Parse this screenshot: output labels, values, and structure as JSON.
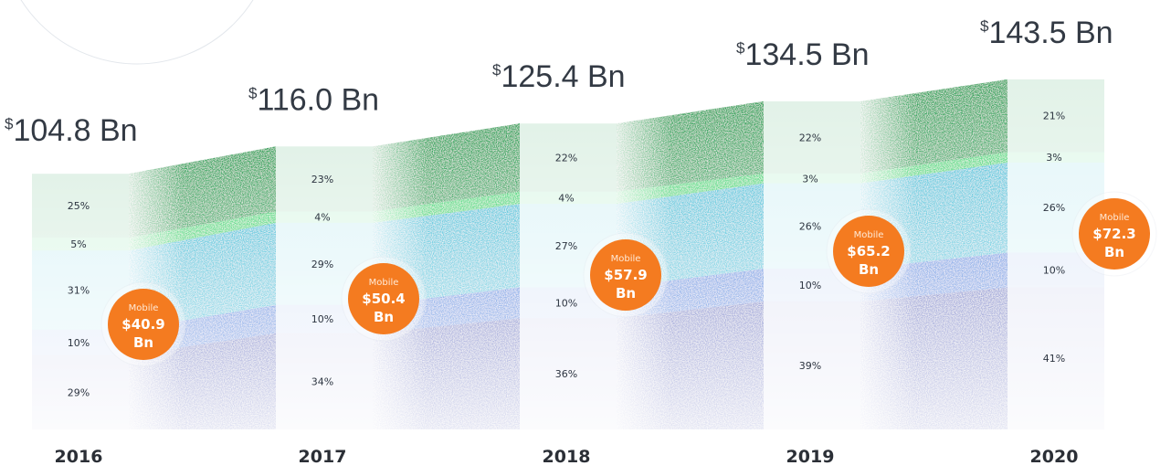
{
  "chart_data": {
    "type": "area",
    "title": "",
    "categories": [
      "2016",
      "2017",
      "2018",
      "2019",
      "2020"
    ],
    "totals_prefix": "$",
    "totals": [
      "104.8 Bn",
      "116.0 Bn",
      "125.4 Bn",
      "134.5 Bn",
      "143.5 Bn"
    ],
    "total_values": [
      104.8,
      116.0,
      125.4,
      134.5,
      143.5
    ],
    "series": [
      {
        "name": "segment-1",
        "values": [
          29,
          34,
          36,
          39,
          41
        ],
        "labels": [
          "29%",
          "34%",
          "36%",
          "39%",
          "41%"
        ],
        "color": "#3946b2"
      },
      {
        "name": "segment-2",
        "values": [
          10,
          10,
          10,
          10,
          10
        ],
        "labels": [
          "10%",
          "10%",
          "10%",
          "10%",
          "10%"
        ],
        "color": "#2c6ed8"
      },
      {
        "name": "segment-3",
        "values": [
          31,
          29,
          27,
          26,
          26
        ],
        "labels": [
          "31%",
          "29%",
          "27%",
          "26%",
          "26%"
        ],
        "color": "#25b9d4"
      },
      {
        "name": "segment-4",
        "values": [
          5,
          4,
          4,
          3,
          3
        ],
        "labels": [
          "5%",
          "4%",
          "4%",
          "3%",
          "3%"
        ],
        "color": "#2fd36a"
      },
      {
        "name": "segment-5",
        "values": [
          25,
          23,
          22,
          22,
          21
        ],
        "labels": [
          "25%",
          "23%",
          "22%",
          "22%",
          "21%"
        ],
        "color": "#1f9e4e"
      }
    ],
    "mobile": {
      "caption": "Mobile",
      "values": [
        40.9,
        50.4,
        57.9,
        65.2,
        72.3
      ],
      "line1": [
        "$40.9",
        "$50.4",
        "$57.9",
        "$65.2",
        "$72.3"
      ],
      "line2": [
        "Bn",
        "Bn",
        "Bn",
        "Bn",
        "Bn"
      ],
      "color": "#f47b20"
    },
    "xlabel": "",
    "ylabel": "",
    "grid": false,
    "legend": "none"
  }
}
